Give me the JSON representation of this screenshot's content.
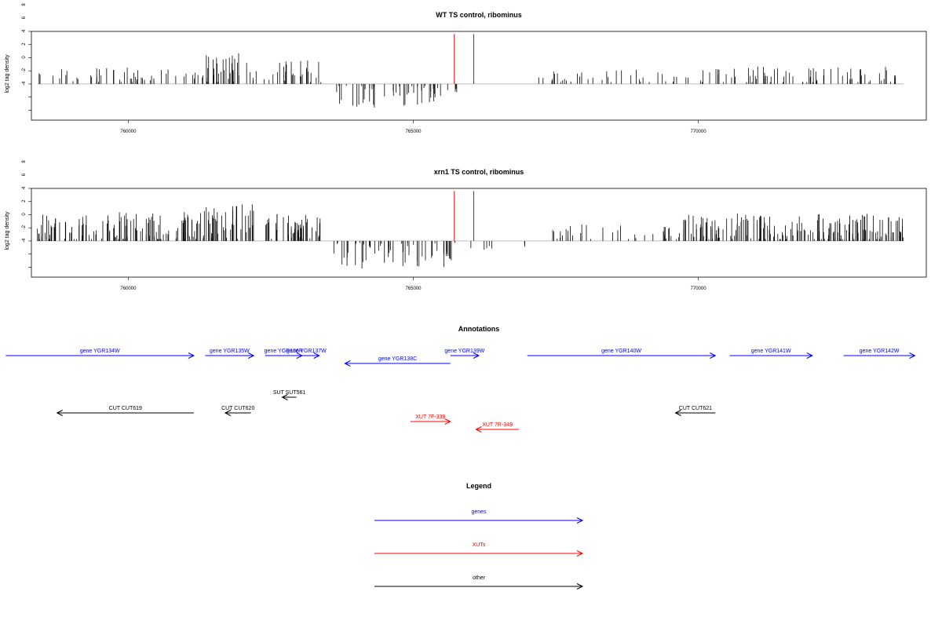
{
  "chart_data": [
    {
      "type": "bar",
      "title": "WT TS control, ribominus",
      "ylabel": "log2 tag density",
      "xlabel": "",
      "xlim": [
        758300,
        774000
      ],
      "ylim": [
        -5.5,
        8
      ],
      "yticks": [
        -4,
        -2,
        0,
        2,
        4,
        6,
        8
      ],
      "xticks": [
        760000,
        765000,
        770000
      ],
      "xtick_labels": [
        "760000",
        "765000",
        "770000"
      ],
      "bar_color": "#000000",
      "marker_color": "#e00000",
      "markers": [
        765720,
        766060
      ],
      "regions": [
        {
          "start": 758400,
          "end": 760900,
          "density": 0.35,
          "mean": 1.3,
          "amp": 1.2,
          "sign": 1
        },
        {
          "start": 760900,
          "end": 761300,
          "density": 0.35,
          "mean": 1.0,
          "amp": 1.0,
          "sign": 1
        },
        {
          "start": 761300,
          "end": 762100,
          "density": 0.8,
          "mean": 2.2,
          "amp": 2.5,
          "sign": 1
        },
        {
          "start": 762100,
          "end": 762500,
          "density": 0.3,
          "mean": 1.0,
          "amp": 1.0,
          "sign": 1
        },
        {
          "start": 762500,
          "end": 763400,
          "density": 0.55,
          "mean": 1.8,
          "amp": 1.8,
          "sign": 1
        },
        {
          "start": 763600,
          "end": 765800,
          "density": 0.45,
          "mean": -1.8,
          "amp": 1.8,
          "sign": -1
        },
        {
          "start": 766800,
          "end": 767400,
          "density": 0.06,
          "mean": 1.0,
          "amp": 0.3,
          "sign": 1
        },
        {
          "start": 767400,
          "end": 769800,
          "density": 0.28,
          "mean": 1.2,
          "amp": 1.0,
          "sign": 1
        },
        {
          "start": 769800,
          "end": 773600,
          "density": 0.4,
          "mean": 1.3,
          "amp": 1.4,
          "sign": 1
        }
      ]
    },
    {
      "type": "bar",
      "title": "xrn1 TS control, ribominus",
      "ylabel": "log2 tag density",
      "xlabel": "",
      "xlim": [
        758300,
        774000
      ],
      "ylim": [
        -5.5,
        8
      ],
      "yticks": [
        -4,
        -2,
        0,
        2,
        4,
        6,
        8
      ],
      "xticks": [
        760000,
        765000,
        770000
      ],
      "xtick_labels": [
        "760000",
        "765000",
        "770000"
      ],
      "bar_color": "#000000",
      "marker_color": "#e00000",
      "markers": [
        765720,
        766060
      ],
      "regions": [
        {
          "start": 758400,
          "end": 761300,
          "density": 0.9,
          "mean": 2.0,
          "amp": 2.4,
          "sign": 1
        },
        {
          "start": 761300,
          "end": 762200,
          "density": 1.0,
          "mean": 3.0,
          "amp": 2.8,
          "sign": 1
        },
        {
          "start": 762400,
          "end": 763400,
          "density": 0.9,
          "mean": 2.2,
          "amp": 2.0,
          "sign": 1
        },
        {
          "start": 763600,
          "end": 765800,
          "density": 0.5,
          "mean": -2.0,
          "amp": 2.2,
          "sign": -1
        },
        {
          "start": 765800,
          "end": 767000,
          "density": 0.12,
          "mean": -1.0,
          "amp": 0.8,
          "sign": -1
        },
        {
          "start": 767400,
          "end": 769600,
          "density": 0.3,
          "mean": 1.4,
          "amp": 1.2,
          "sign": 1
        },
        {
          "start": 769600,
          "end": 773600,
          "density": 0.95,
          "mean": 2.0,
          "amp": 2.2,
          "sign": 1
        }
      ]
    }
  ],
  "annotations": {
    "title": "Annotations",
    "items": [
      {
        "label": "gene YGR134W",
        "start": 757850,
        "end": 761150,
        "dir": "right",
        "row": 0,
        "color": "#0000ff"
      },
      {
        "label": "gene YGR135W",
        "start": 761350,
        "end": 762200,
        "dir": "right",
        "row": 0,
        "color": "#0000ff"
      },
      {
        "label": "gene YGR136R",
        "start": 762400,
        "end": 763050,
        "dir": "right",
        "row": 0,
        "color": "#0000ff"
      },
      {
        "label": "gene YGR137W",
        "start": 762900,
        "end": 763350,
        "dir": "right",
        "row": 0,
        "color": "#0000ff"
      },
      {
        "label": "gene YGR138C",
        "start": 763800,
        "end": 765650,
        "dir": "left",
        "row": 1,
        "color": "#0000ff"
      },
      {
        "label": "gene YGR139W",
        "start": 765650,
        "end": 766150,
        "dir": "right",
        "row": 0,
        "color": "#0000ff"
      },
      {
        "label": "gene YGR140W",
        "start": 767000,
        "end": 770300,
        "dir": "right",
        "row": 0,
        "color": "#0000ff"
      },
      {
        "label": "gene YGR141W",
        "start": 770550,
        "end": 772000,
        "dir": "right",
        "row": 0,
        "color": "#0000ff"
      },
      {
        "label": "gene YGR142W",
        "start": 772550,
        "end": 773800,
        "dir": "right",
        "row": 0,
        "color": "#0000ff"
      },
      {
        "label": "SUT SUT561",
        "start": 762700,
        "end": 762950,
        "dir": "left",
        "row": 3,
        "color": "#000000"
      },
      {
        "label": "CUT CUT619",
        "start": 758750,
        "end": 761150,
        "dir": "left",
        "row": 4,
        "color": "#000000"
      },
      {
        "label": "CUT CUT620",
        "start": 761700,
        "end": 762150,
        "dir": "left",
        "row": 4,
        "color": "#000000"
      },
      {
        "label": "CUT CUT621",
        "start": 769600,
        "end": 770300,
        "dir": "left",
        "row": 4,
        "color": "#000000"
      },
      {
        "label": "XUT 7F-339",
        "start": 764950,
        "end": 765650,
        "dir": "right",
        "row": 5,
        "color": "#ff0000"
      },
      {
        "label": "XUT 7R-349",
        "start": 766100,
        "end": 766850,
        "dir": "left",
        "row": 6,
        "color": "#ff0000"
      }
    ]
  },
  "legend": {
    "title": "Legend",
    "items": [
      {
        "label": "genes",
        "color": "#0000ff"
      },
      {
        "label": "XUTs",
        "color": "#ff0000"
      },
      {
        "label": "other",
        "color": "#000000"
      }
    ]
  }
}
